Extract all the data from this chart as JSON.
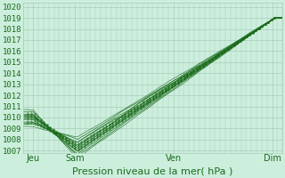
{
  "title": "Pression niveau de la mer( hPa )",
  "ylabel_values": [
    1007,
    1008,
    1009,
    1010,
    1011,
    1012,
    1013,
    1014,
    1015,
    1016,
    1017,
    1018,
    1019,
    1020
  ],
  "ylim": [
    1006.8,
    1020.4
  ],
  "xlim": [
    0,
    100
  ],
  "xtick_positions": [
    4,
    20,
    58,
    96
  ],
  "xtick_labels": [
    "Jeu",
    "Sam",
    "Ven",
    "Dim"
  ],
  "background_color": "#cceedd",
  "grid_color": "#aaccbb",
  "line_color": "#1a6b1a",
  "title_color": "#1a6b1a",
  "title_fontsize": 8,
  "tick_fontsize": 6.5
}
